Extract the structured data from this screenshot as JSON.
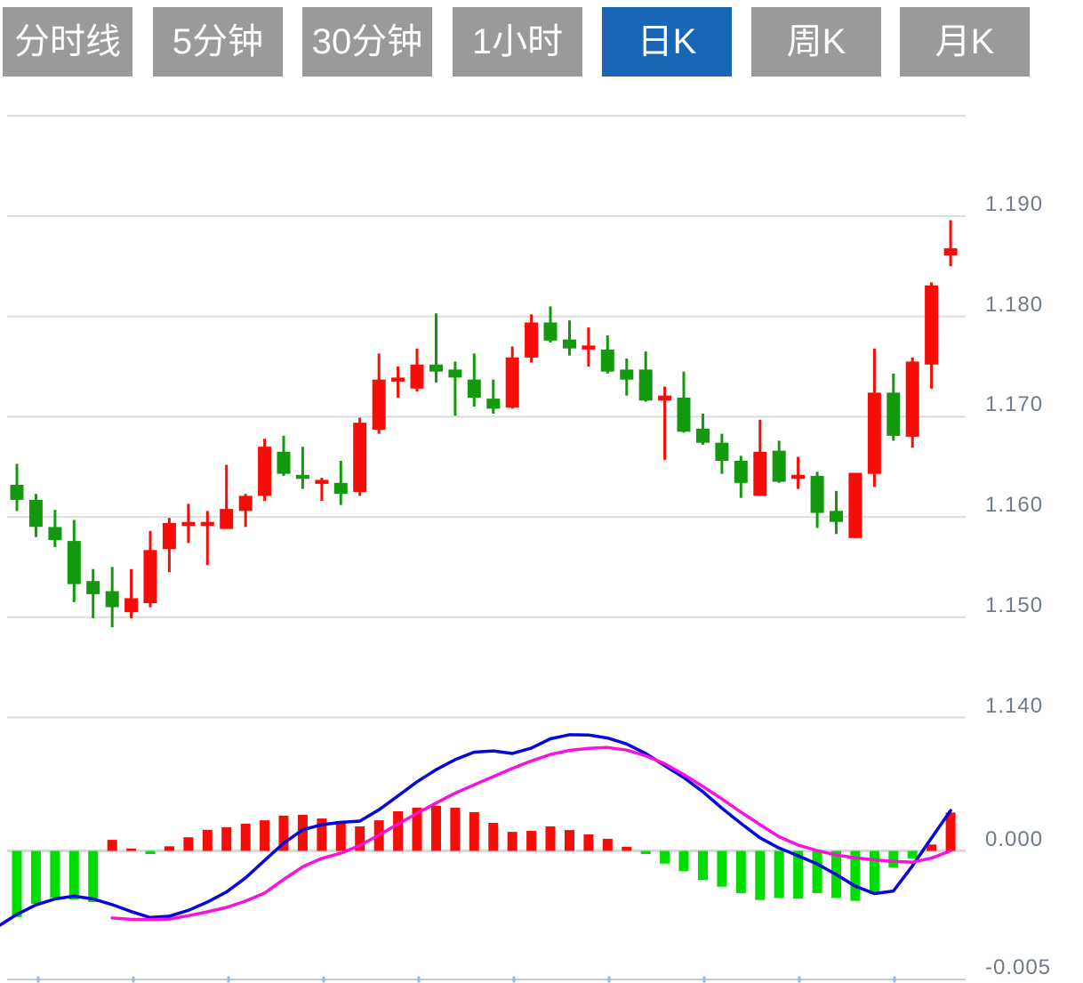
{
  "toolbar": {
    "buttons": [
      {
        "label": "分时线",
        "active": false
      },
      {
        "label": "5分钟",
        "active": false
      },
      {
        "label": "30分钟",
        "active": false
      },
      {
        "label": "1小时",
        "active": false
      },
      {
        "label": "日K",
        "active": true
      },
      {
        "label": "周K",
        "active": false
      },
      {
        "label": "月K",
        "active": false
      }
    ],
    "active_bg": "#1866b5",
    "inactive_bg": "#9a9a9a",
    "text_color": "#ffffff"
  },
  "chart_data": {
    "type": "candlestick+macd",
    "title": "",
    "price_axis": {
      "tick_labels": [
        "1.190",
        "1.180",
        "1.170",
        "1.160",
        "1.150",
        "1.140"
      ],
      "tick_values": [
        1.19,
        1.18,
        1.17,
        1.16,
        1.15,
        1.14
      ],
      "grid_values": [
        1.2,
        1.19,
        1.18,
        1.17,
        1.16,
        1.15,
        1.14
      ],
      "range": [
        1.14,
        1.2
      ],
      "position": "right"
    },
    "macd_axis": {
      "tick_labels": [
        "0.000",
        "-0.005"
      ],
      "tick_values": [
        0.0,
        -0.005
      ],
      "range": [
        -0.005,
        0.005
      ],
      "position": "right"
    },
    "candles_ohlc": [
      [
        1.1632,
        1.1653,
        1.1606,
        1.1617
      ],
      [
        1.1617,
        1.1623,
        1.158,
        1.159
      ],
      [
        1.159,
        1.1607,
        1.157,
        1.1577
      ],
      [
        1.1576,
        1.1597,
        1.1515,
        1.1533
      ],
      [
        1.1536,
        1.1548,
        1.1499,
        1.1523
      ],
      [
        1.1526,
        1.155,
        1.149,
        1.151
      ],
      [
        1.1505,
        1.1548,
        1.1499,
        1.1519
      ],
      [
        1.1514,
        1.1586,
        1.151,
        1.1567
      ],
      [
        1.1568,
        1.1599,
        1.1545,
        1.1594
      ],
      [
        1.1591,
        1.1613,
        1.1574,
        1.1595
      ],
      [
        1.1591,
        1.1606,
        1.1552,
        1.1595
      ],
      [
        1.1588,
        1.1652,
        1.1588,
        1.1608
      ],
      [
        1.1606,
        1.1623,
        1.159,
        1.1621
      ],
      [
        1.1621,
        1.1678,
        1.1616,
        1.167
      ],
      [
        1.1665,
        1.1681,
        1.1641,
        1.1643
      ],
      [
        1.1642,
        1.167,
        1.1628,
        1.1638
      ],
      [
        1.1633,
        1.1639,
        1.1616,
        1.1637
      ],
      [
        1.1634,
        1.1656,
        1.1612,
        1.1623
      ],
      [
        1.1625,
        1.1699,
        1.1621,
        1.1694
      ],
      [
        1.1687,
        1.1763,
        1.1683,
        1.1737
      ],
      [
        1.1735,
        1.175,
        1.1719,
        1.1739
      ],
      [
        1.1728,
        1.1768,
        1.1725,
        1.1752
      ],
      [
        1.1752,
        1.1803,
        1.1734,
        1.1745
      ],
      [
        1.1747,
        1.1755,
        1.1701,
        1.1739
      ],
      [
        1.1737,
        1.1763,
        1.171,
        1.1719
      ],
      [
        1.1718,
        1.1737,
        1.1703,
        1.1708
      ],
      [
        1.1709,
        1.177,
        1.1708,
        1.1759
      ],
      [
        1.1759,
        1.1802,
        1.1754,
        1.1794
      ],
      [
        1.1794,
        1.181,
        1.1774,
        1.1776
      ],
      [
        1.1777,
        1.1796,
        1.1761,
        1.1768
      ],
      [
        1.1767,
        1.1789,
        1.175,
        1.1771
      ],
      [
        1.1767,
        1.1781,
        1.1743,
        1.1745
      ],
      [
        1.1747,
        1.1758,
        1.1721,
        1.1737
      ],
      [
        1.1747,
        1.1765,
        1.1715,
        1.1716
      ],
      [
        1.1716,
        1.173,
        1.1657,
        1.1721
      ],
      [
        1.1719,
        1.1745,
        1.1684,
        1.1685
      ],
      [
        1.1688,
        1.1703,
        1.1672,
        1.1674
      ],
      [
        1.1674,
        1.1683,
        1.1643,
        1.1656
      ],
      [
        1.1656,
        1.1661,
        1.1619,
        1.1634
      ],
      [
        1.1621,
        1.1697,
        1.1621,
        1.1665
      ],
      [
        1.1666,
        1.1676,
        1.1634,
        1.1635
      ],
      [
        1.1638,
        1.166,
        1.1628,
        1.1642
      ],
      [
        1.1641,
        1.1645,
        1.1589,
        1.1604
      ],
      [
        1.1606,
        1.1626,
        1.1583,
        1.1595
      ],
      [
        1.1579,
        1.1644,
        1.1579,
        1.1644
      ],
      [
        1.1643,
        1.1768,
        1.163,
        1.1724
      ],
      [
        1.1724,
        1.1743,
        1.1676,
        1.1681
      ],
      [
        1.168,
        1.1759,
        1.1669,
        1.1755
      ],
      [
        1.1752,
        1.1834,
        1.1728,
        1.1831
      ],
      [
        1.1861,
        1.1896,
        1.185,
        1.1868
      ]
    ],
    "macd": {
      "histogram": [
        -0.00257,
        -0.00206,
        -0.00182,
        -0.00189,
        -0.00199,
        0.00043,
        9e-05,
        -0.00012,
        0.00018,
        0.00053,
        0.00082,
        0.00092,
        0.00106,
        0.00119,
        0.00137,
        0.0014,
        0.00126,
        0.00116,
        0.00095,
        0.00119,
        0.00154,
        0.00168,
        0.00175,
        0.00168,
        0.00151,
        0.00109,
        0.00074,
        0.00078,
        0.00095,
        0.00081,
        0.00064,
        0.00047,
        0.00016,
        -0.00012,
        -0.00049,
        -0.00079,
        -0.00113,
        -0.00139,
        -0.00164,
        -0.00191,
        -0.00183,
        -0.00185,
        -0.00164,
        -0.00183,
        -0.00194,
        -0.00168,
        -0.00064,
        -0.00029,
        0.00025,
        0.00149
      ],
      "dif": [
        -0.00247,
        -0.0021,
        -0.00187,
        -0.00176,
        -0.00187,
        -0.00209,
        -0.00236,
        -0.00259,
        -0.00254,
        -0.00231,
        -0.00199,
        -0.0016,
        -0.00105,
        -0.00037,
        0.0003,
        0.00082,
        0.00102,
        0.00111,
        0.00116,
        0.0016,
        0.00214,
        0.00269,
        0.00316,
        0.00355,
        0.00384,
        0.00389,
        0.00379,
        0.004,
        0.00436,
        0.00452,
        0.00451,
        0.00439,
        0.00416,
        0.00379,
        0.00332,
        0.00285,
        0.0023,
        0.00166,
        0.00107,
        0.00051,
        0.00011,
        -0.00019,
        -0.00051,
        -0.00092,
        -0.00137,
        -0.00166,
        -0.00156,
        -0.00058,
        0.0005,
        0.00157
      ],
      "dif_left_edge": -0.00289,
      "dea": [
        null,
        null,
        null,
        null,
        null,
        -0.00261,
        -0.00266,
        -0.00267,
        -0.00265,
        -0.00252,
        -0.00237,
        -0.0022,
        -0.00195,
        -0.00164,
        -0.00111,
        -0.00062,
        -0.00029,
        -9e-05,
        0.00021,
        0.00062,
        0.00104,
        0.00146,
        0.00186,
        0.00225,
        0.00257,
        0.00289,
        0.00321,
        0.0035,
        0.00375,
        0.00391,
        0.00399,
        0.00402,
        0.00392,
        0.0037,
        0.00339,
        0.00297,
        0.00251,
        0.00202,
        0.00151,
        0.00102,
        0.00055,
        0.00023,
        1e-05,
        -0.00016,
        -0.00027,
        -0.00035,
        -0.00041,
        -0.00044,
        -0.00028,
        0.0
      ]
    },
    "colors": {
      "up": "#f50d07",
      "down": "#12990e",
      "hist_positive": "#f50d07",
      "hist_negative": "#00dd00",
      "dif_line": "#0508dc",
      "dea_line": "#fa11dc",
      "grid": "#dcdcdc",
      "zero_line": "#d9d9d9",
      "x_axis": "#c9c9c9",
      "x_tick": "#9db8d8",
      "axis_label": "#6e7b88"
    },
    "legend": [],
    "grid": "horizontal-only"
  }
}
